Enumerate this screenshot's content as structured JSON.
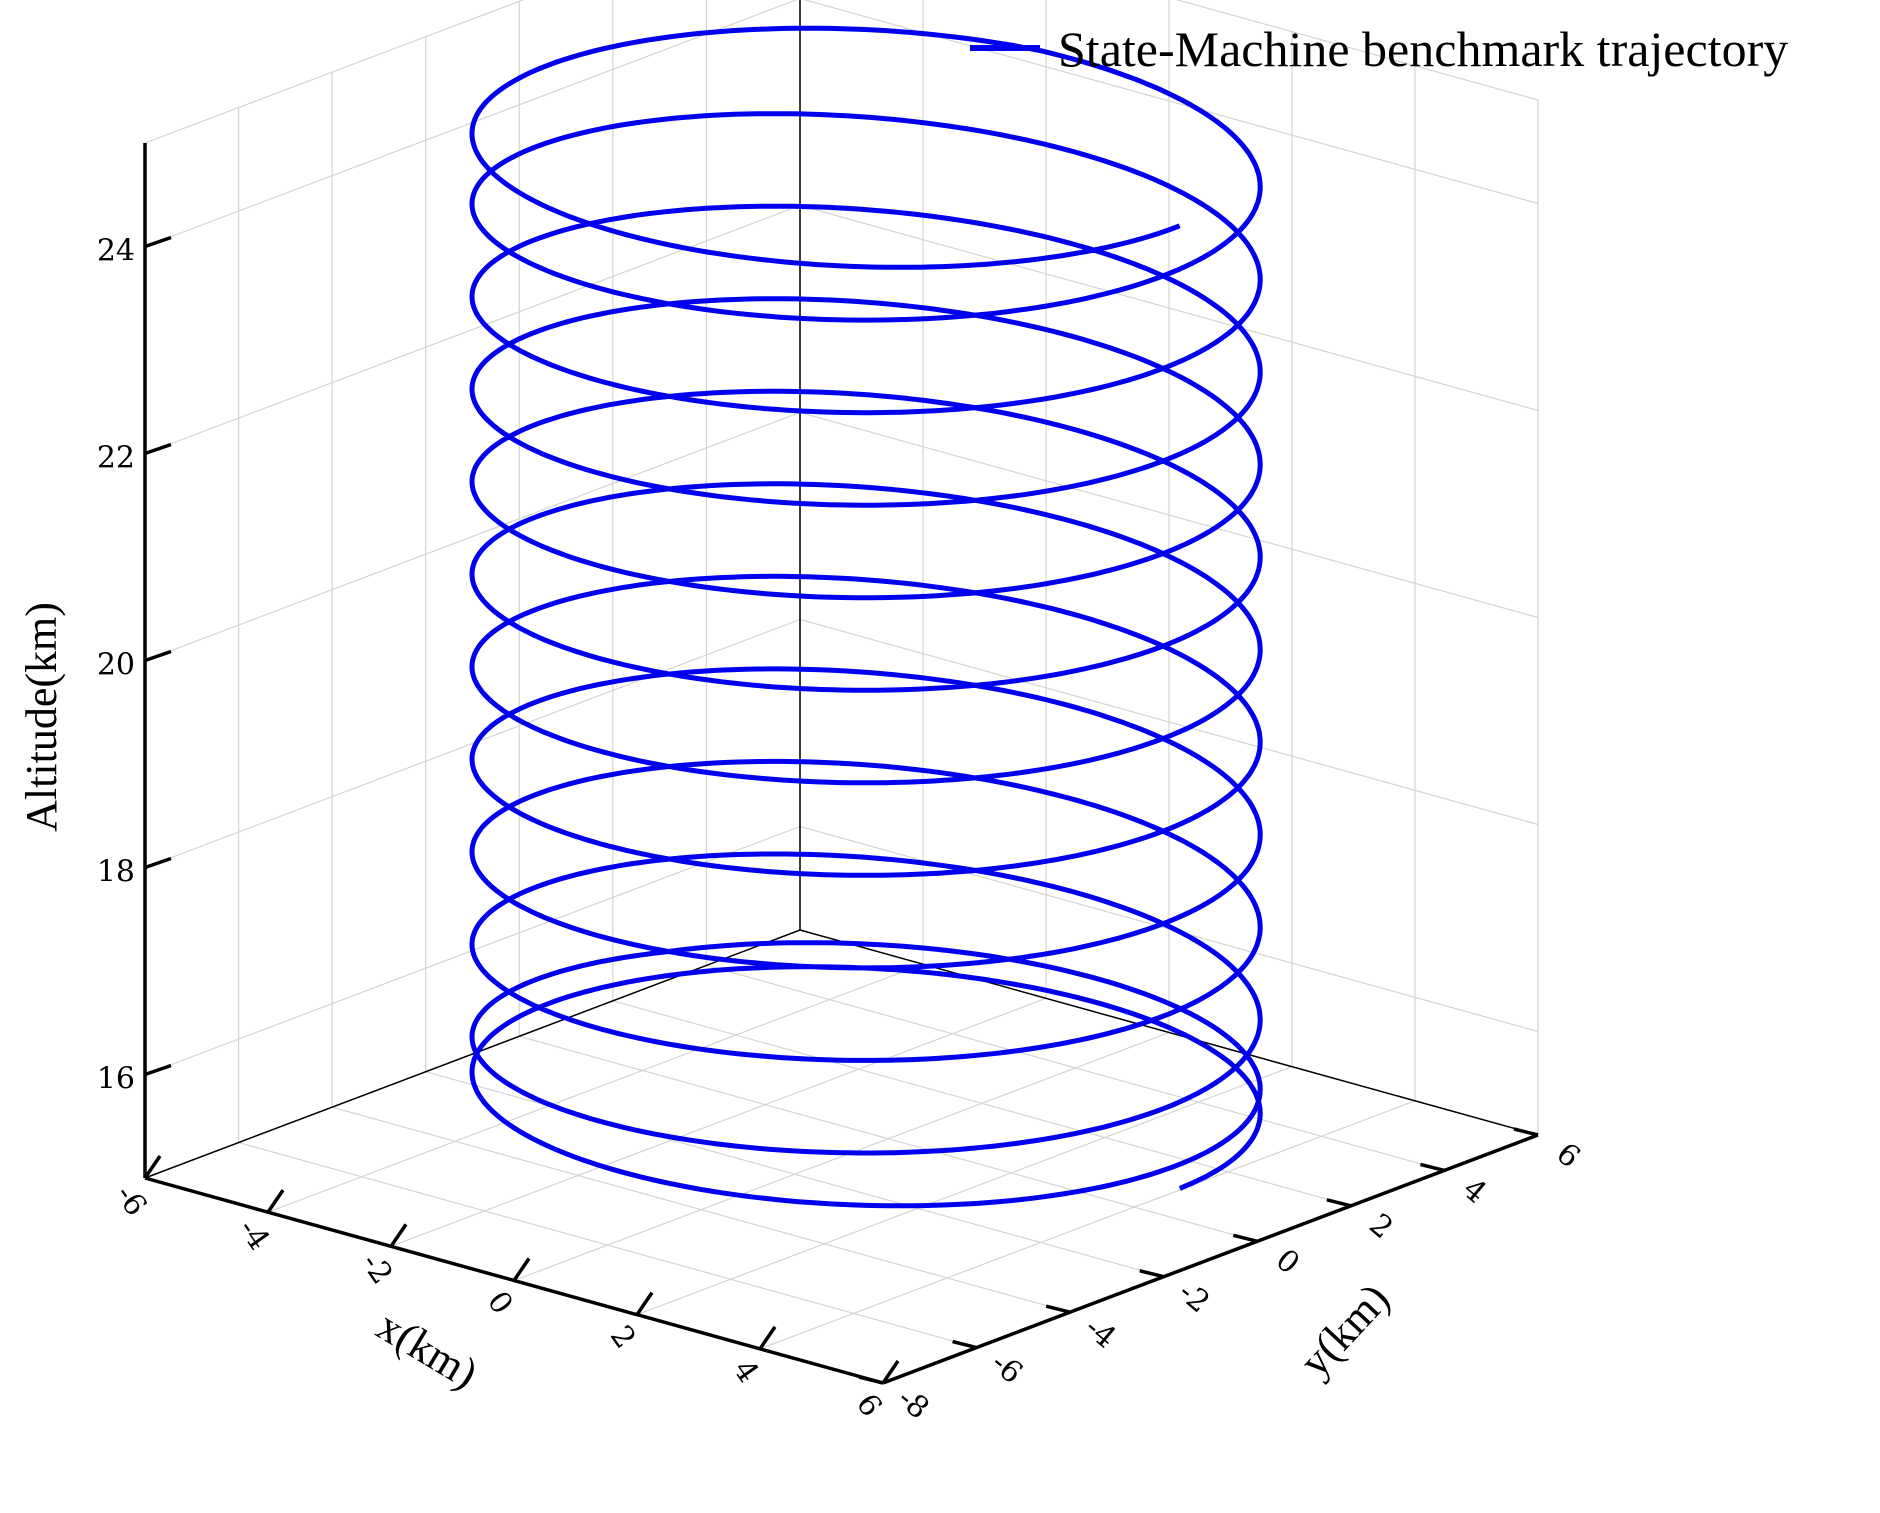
{
  "chart_data": {
    "type": "line",
    "projection": "3d",
    "xlabel": "x(km)",
    "ylabel": "y(km)",
    "zlabel": "Altitude(km)",
    "xlim": [
      -6,
      6
    ],
    "ylim": [
      -8,
      6
    ],
    "zlim": [
      15,
      25
    ],
    "x_ticks": [
      "-6",
      "-4",
      "-2",
      "0",
      "2",
      "4",
      "6"
    ],
    "y_ticks": [
      "-8",
      "-6",
      "-4",
      "-2",
      "0",
      "2",
      "4",
      "6"
    ],
    "z_ticks": [
      "16",
      "18",
      "20",
      "22",
      "24"
    ],
    "grid": true,
    "legend_position": "top-right",
    "series": [
      {
        "name": "State-Machine benchmark trajectory",
        "color": "#0000ee",
        "shape": "helix",
        "center_x": 0.4,
        "center_y": -1,
        "radius": 5.1,
        "altitude_start": 15.6,
        "altitude_end": 24.9,
        "turns": 12
      }
    ]
  }
}
